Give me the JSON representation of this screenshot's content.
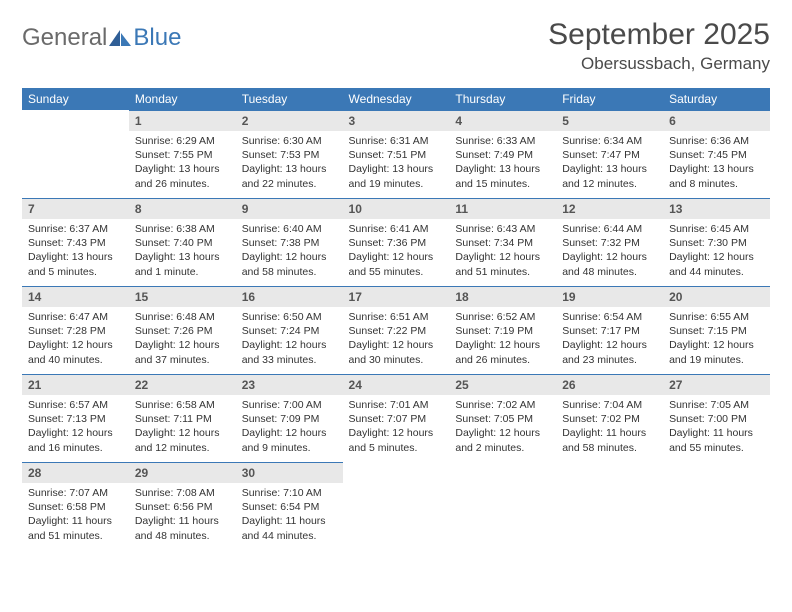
{
  "logo": {
    "text1": "General",
    "text2": "Blue"
  },
  "title": {
    "month": "September 2025",
    "location": "Obersussbach, Germany"
  },
  "colors": {
    "headerBg": "#3b78b6",
    "headerText": "#ffffff",
    "dayNumBg": "#e8e8e8",
    "dayNumBorder": "#3b78b6",
    "bodyText": "#333333",
    "logoGray": "#6a6a6a",
    "logoBlue": "#3b78b6"
  },
  "dayNames": [
    "Sunday",
    "Monday",
    "Tuesday",
    "Wednesday",
    "Thursday",
    "Friday",
    "Saturday"
  ],
  "weeks": [
    [
      {
        "empty": true
      },
      {
        "num": "1",
        "sunrise": "Sunrise: 6:29 AM",
        "sunset": "Sunset: 7:55 PM",
        "day1": "Daylight: 13 hours",
        "day2": "and 26 minutes."
      },
      {
        "num": "2",
        "sunrise": "Sunrise: 6:30 AM",
        "sunset": "Sunset: 7:53 PM",
        "day1": "Daylight: 13 hours",
        "day2": "and 22 minutes."
      },
      {
        "num": "3",
        "sunrise": "Sunrise: 6:31 AM",
        "sunset": "Sunset: 7:51 PM",
        "day1": "Daylight: 13 hours",
        "day2": "and 19 minutes."
      },
      {
        "num": "4",
        "sunrise": "Sunrise: 6:33 AM",
        "sunset": "Sunset: 7:49 PM",
        "day1": "Daylight: 13 hours",
        "day2": "and 15 minutes."
      },
      {
        "num": "5",
        "sunrise": "Sunrise: 6:34 AM",
        "sunset": "Sunset: 7:47 PM",
        "day1": "Daylight: 13 hours",
        "day2": "and 12 minutes."
      },
      {
        "num": "6",
        "sunrise": "Sunrise: 6:36 AM",
        "sunset": "Sunset: 7:45 PM",
        "day1": "Daylight: 13 hours",
        "day2": "and 8 minutes."
      }
    ],
    [
      {
        "num": "7",
        "sunrise": "Sunrise: 6:37 AM",
        "sunset": "Sunset: 7:43 PM",
        "day1": "Daylight: 13 hours",
        "day2": "and 5 minutes."
      },
      {
        "num": "8",
        "sunrise": "Sunrise: 6:38 AM",
        "sunset": "Sunset: 7:40 PM",
        "day1": "Daylight: 13 hours",
        "day2": "and 1 minute."
      },
      {
        "num": "9",
        "sunrise": "Sunrise: 6:40 AM",
        "sunset": "Sunset: 7:38 PM",
        "day1": "Daylight: 12 hours",
        "day2": "and 58 minutes."
      },
      {
        "num": "10",
        "sunrise": "Sunrise: 6:41 AM",
        "sunset": "Sunset: 7:36 PM",
        "day1": "Daylight: 12 hours",
        "day2": "and 55 minutes."
      },
      {
        "num": "11",
        "sunrise": "Sunrise: 6:43 AM",
        "sunset": "Sunset: 7:34 PM",
        "day1": "Daylight: 12 hours",
        "day2": "and 51 minutes."
      },
      {
        "num": "12",
        "sunrise": "Sunrise: 6:44 AM",
        "sunset": "Sunset: 7:32 PM",
        "day1": "Daylight: 12 hours",
        "day2": "and 48 minutes."
      },
      {
        "num": "13",
        "sunrise": "Sunrise: 6:45 AM",
        "sunset": "Sunset: 7:30 PM",
        "day1": "Daylight: 12 hours",
        "day2": "and 44 minutes."
      }
    ],
    [
      {
        "num": "14",
        "sunrise": "Sunrise: 6:47 AM",
        "sunset": "Sunset: 7:28 PM",
        "day1": "Daylight: 12 hours",
        "day2": "and 40 minutes."
      },
      {
        "num": "15",
        "sunrise": "Sunrise: 6:48 AM",
        "sunset": "Sunset: 7:26 PM",
        "day1": "Daylight: 12 hours",
        "day2": "and 37 minutes."
      },
      {
        "num": "16",
        "sunrise": "Sunrise: 6:50 AM",
        "sunset": "Sunset: 7:24 PM",
        "day1": "Daylight: 12 hours",
        "day2": "and 33 minutes."
      },
      {
        "num": "17",
        "sunrise": "Sunrise: 6:51 AM",
        "sunset": "Sunset: 7:22 PM",
        "day1": "Daylight: 12 hours",
        "day2": "and 30 minutes."
      },
      {
        "num": "18",
        "sunrise": "Sunrise: 6:52 AM",
        "sunset": "Sunset: 7:19 PM",
        "day1": "Daylight: 12 hours",
        "day2": "and 26 minutes."
      },
      {
        "num": "19",
        "sunrise": "Sunrise: 6:54 AM",
        "sunset": "Sunset: 7:17 PM",
        "day1": "Daylight: 12 hours",
        "day2": "and 23 minutes."
      },
      {
        "num": "20",
        "sunrise": "Sunrise: 6:55 AM",
        "sunset": "Sunset: 7:15 PM",
        "day1": "Daylight: 12 hours",
        "day2": "and 19 minutes."
      }
    ],
    [
      {
        "num": "21",
        "sunrise": "Sunrise: 6:57 AM",
        "sunset": "Sunset: 7:13 PM",
        "day1": "Daylight: 12 hours",
        "day2": "and 16 minutes."
      },
      {
        "num": "22",
        "sunrise": "Sunrise: 6:58 AM",
        "sunset": "Sunset: 7:11 PM",
        "day1": "Daylight: 12 hours",
        "day2": "and 12 minutes."
      },
      {
        "num": "23",
        "sunrise": "Sunrise: 7:00 AM",
        "sunset": "Sunset: 7:09 PM",
        "day1": "Daylight: 12 hours",
        "day2": "and 9 minutes."
      },
      {
        "num": "24",
        "sunrise": "Sunrise: 7:01 AM",
        "sunset": "Sunset: 7:07 PM",
        "day1": "Daylight: 12 hours",
        "day2": "and 5 minutes."
      },
      {
        "num": "25",
        "sunrise": "Sunrise: 7:02 AM",
        "sunset": "Sunset: 7:05 PM",
        "day1": "Daylight: 12 hours",
        "day2": "and 2 minutes."
      },
      {
        "num": "26",
        "sunrise": "Sunrise: 7:04 AM",
        "sunset": "Sunset: 7:02 PM",
        "day1": "Daylight: 11 hours",
        "day2": "and 58 minutes."
      },
      {
        "num": "27",
        "sunrise": "Sunrise: 7:05 AM",
        "sunset": "Sunset: 7:00 PM",
        "day1": "Daylight: 11 hours",
        "day2": "and 55 minutes."
      }
    ],
    [
      {
        "num": "28",
        "sunrise": "Sunrise: 7:07 AM",
        "sunset": "Sunset: 6:58 PM",
        "day1": "Daylight: 11 hours",
        "day2": "and 51 minutes."
      },
      {
        "num": "29",
        "sunrise": "Sunrise: 7:08 AM",
        "sunset": "Sunset: 6:56 PM",
        "day1": "Daylight: 11 hours",
        "day2": "and 48 minutes."
      },
      {
        "num": "30",
        "sunrise": "Sunrise: 7:10 AM",
        "sunset": "Sunset: 6:54 PM",
        "day1": "Daylight: 11 hours",
        "day2": "and 44 minutes."
      },
      {
        "empty": true
      },
      {
        "empty": true
      },
      {
        "empty": true
      },
      {
        "empty": true
      }
    ]
  ]
}
